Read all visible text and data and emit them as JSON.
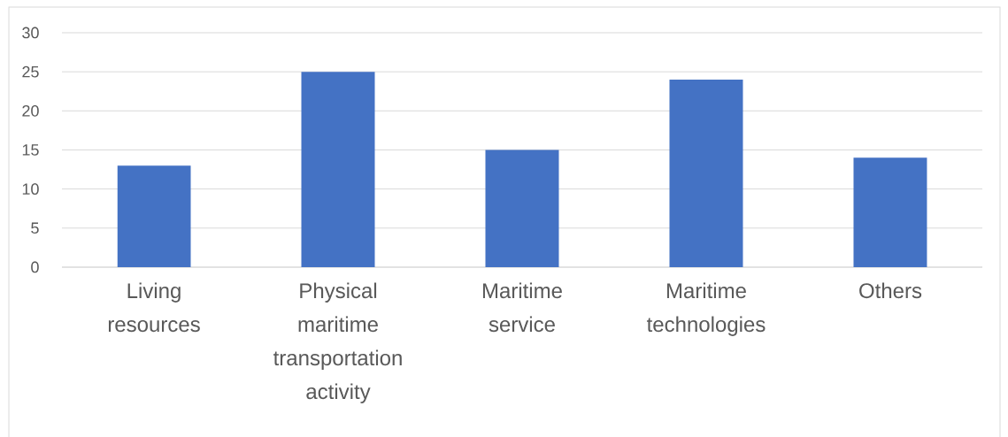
{
  "chart_data": {
    "type": "bar",
    "categories": [
      "Living resources",
      "Physical maritime transportation activity",
      "Maritime service",
      "Maritime technologies",
      "Others"
    ],
    "values": [
      13,
      25,
      15,
      24,
      14
    ],
    "color": "#4472c4",
    "ylim": [
      0,
      30
    ],
    "yticks": [
      0,
      5,
      10,
      15,
      20,
      25,
      30
    ],
    "grid": "y"
  }
}
